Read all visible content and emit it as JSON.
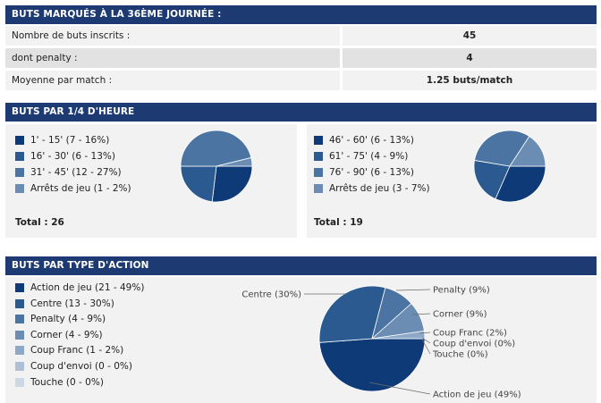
{
  "section1": {
    "title": "BUTS MARQUÉS À LA 36ÈME JOURNÉE :",
    "rows": [
      {
        "label": "Nombre de buts inscrits :",
        "value": "45"
      },
      {
        "label": "dont penalty :",
        "value": "4"
      },
      {
        "label": "Moyenne par match :",
        "value": "1.25 buts/match"
      }
    ]
  },
  "section2": {
    "title": "BUTS PAR 1/4 D'HEURE",
    "left": {
      "legend": [
        "1' - 15' (7 - 16%)",
        "16' - 30' (6 - 13%)",
        "31' - 45' (12 - 27%)",
        "Arrêts de jeu (1 - 2%)"
      ],
      "total": "Total : 26"
    },
    "right": {
      "legend": [
        "46' - 60' (6 - 13%)",
        "61' - 75' (4 - 9%)",
        "76' - 90' (6 - 13%)",
        "Arrêts de jeu (3 - 7%)"
      ],
      "total": "Total : 19"
    }
  },
  "section3": {
    "title": "BUTS PAR TYPE D'ACTION",
    "legend": [
      "Action de jeu (21 - 49%)",
      "Centre (13 - 30%)",
      "Penalty (4 - 9%)",
      "Corner (4 - 9%)",
      "Coup Franc (1 - 2%)",
      "Coup d'envoi (0 - 0%)",
      "Touche (0 - 0%)"
    ],
    "pie_labels": [
      "Action de jeu (49%)",
      "Centre (30%)",
      "Penalty (9%)",
      "Corner (9%)",
      "Coup Franc (2%)",
      "Coup d'envoi (0%)",
      "Touche (0%)"
    ]
  },
  "colors": [
    "#0e3a78",
    "#2b5a90",
    "#4b74a2",
    "#6b8db4",
    "#8ea9c8",
    "#aebfd6",
    "#cdd8e6"
  ],
  "chart_data": [
    {
      "type": "pie",
      "categories": [
        "1' - 15'",
        "16' - 30'",
        "31' - 45'",
        "Arrêts de jeu"
      ],
      "values": [
        7,
        6,
        12,
        1
      ]
    },
    {
      "type": "pie",
      "categories": [
        "46' - 60'",
        "61' - 75'",
        "76' - 90'",
        "Arrêts de jeu"
      ],
      "values": [
        6,
        4,
        6,
        3
      ]
    },
    {
      "type": "pie",
      "categories": [
        "Action de jeu",
        "Centre",
        "Penalty",
        "Corner",
        "Coup Franc",
        "Coup d'envoi",
        "Touche"
      ],
      "values": [
        21,
        13,
        4,
        4,
        1,
        0,
        0
      ]
    }
  ]
}
